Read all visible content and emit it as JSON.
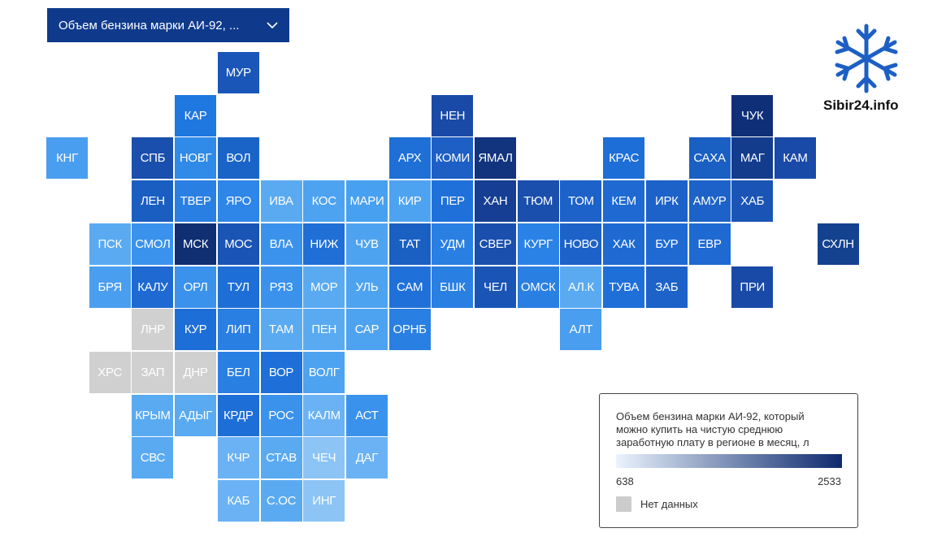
{
  "dropdown": {
    "label": "Объем бензина марки АИ-92, ..."
  },
  "logo": {
    "text": "Sibir24.info"
  },
  "tiles": [
    {
      "label": "МУР",
      "color": "#1a56b8"
    },
    {
      "label": "КАР",
      "color": "#1f77e0"
    },
    {
      "label": "НЕН",
      "color": "#1a4aa8"
    },
    {
      "label": "ЧУК",
      "color": "#0f2f78"
    },
    {
      "label": "КНГ",
      "color": "#4a9ef0"
    },
    {
      "label": "СПБ",
      "color": "#1a4fad"
    },
    {
      "label": "НОВГ",
      "color": "#2f8ae8"
    },
    {
      "label": "ВОЛ",
      "color": "#1a64c8"
    },
    {
      "label": "АРХ",
      "color": "#1e6fd6"
    },
    {
      "label": "КОМИ",
      "color": "#1d5fc4"
    },
    {
      "label": "ЯМАЛ",
      "color": "#12337e"
    },
    {
      "label": "КРАС",
      "color": "#1e6ed8"
    },
    {
      "label": "САХА",
      "color": "#1a5fc2"
    },
    {
      "label": "МАГ",
      "color": "#143c8c"
    },
    {
      "label": "КАМ",
      "color": "#1a4aa8"
    },
    {
      "label": "ЛЕН",
      "color": "#1a5ec2"
    },
    {
      "label": "ТВЕР",
      "color": "#2a7fe2"
    },
    {
      "label": "ЯРО",
      "color": "#2e86e8"
    },
    {
      "label": "ИВА",
      "color": "#5aaaf2"
    },
    {
      "label": "КОС",
      "color": "#4ea3f0"
    },
    {
      "label": "МАРИ",
      "color": "#48a0f0"
    },
    {
      "label": "КИР",
      "color": "#4ea3f0"
    },
    {
      "label": "ПЕР",
      "color": "#1f71d9"
    },
    {
      "label": "ХАН",
      "color": "#163f93"
    },
    {
      "label": "ТЮМ",
      "color": "#1a4fad"
    },
    {
      "label": "ТОМ",
      "color": "#1d62c8"
    },
    {
      "label": "КЕМ",
      "color": "#1e6ad2"
    },
    {
      "label": "ИРК",
      "color": "#1d62c8"
    },
    {
      "label": "АМУР",
      "color": "#1d62c8"
    },
    {
      "label": "ХАБ",
      "color": "#1a55b6"
    },
    {
      "label": "ПСК",
      "color": "#5aaaf2"
    },
    {
      "label": "СМОЛ",
      "color": "#3a92ec"
    },
    {
      "label": "МСК",
      "color": "#102f72"
    },
    {
      "label": "МОС",
      "color": "#1a54b4"
    },
    {
      "label": "ВЛА",
      "color": "#3a92ec"
    },
    {
      "label": "НИЖ",
      "color": "#1f6fd6"
    },
    {
      "label": "ЧУВ",
      "color": "#4ea3f0"
    },
    {
      "label": "ТАТ",
      "color": "#1a5fc2"
    },
    {
      "label": "УДМ",
      "color": "#2a7fe2"
    },
    {
      "label": "СВЕР",
      "color": "#1a4fad"
    },
    {
      "label": "КУРГ",
      "color": "#2a82e6"
    },
    {
      "label": "НОВО",
      "color": "#1d62c8"
    },
    {
      "label": "ХАК",
      "color": "#1e6ad2"
    },
    {
      "label": "БУР",
      "color": "#1e6ad2"
    },
    {
      "label": "ЕВР",
      "color": "#1e6ad2"
    },
    {
      "label": "СХЛН",
      "color": "#14428f"
    },
    {
      "label": "БРЯ",
      "color": "#4a9ef0"
    },
    {
      "label": "КАЛУ",
      "color": "#1e6ad2"
    },
    {
      "label": "ОРЛ",
      "color": "#3a92ec"
    },
    {
      "label": "ТУЛ",
      "color": "#1e6ed8"
    },
    {
      "label": "РЯЗ",
      "color": "#3a92ec"
    },
    {
      "label": "МОР",
      "color": "#5aaaf2"
    },
    {
      "label": "УЛЬ",
      "color": "#4ea3f0"
    },
    {
      "label": "САМ",
      "color": "#1f71d9"
    },
    {
      "label": "БШК",
      "color": "#2a7fe2"
    },
    {
      "label": "ЧЕЛ",
      "color": "#1a55b6"
    },
    {
      "label": "ОМСК",
      "color": "#2a7fe2"
    },
    {
      "label": "АЛ.К",
      "color": "#5aaaf2"
    },
    {
      "label": "ТУВА",
      "color": "#1e70d8"
    },
    {
      "label": "ЗАБ",
      "color": "#1d62c8"
    },
    {
      "label": "ПРИ",
      "color": "#1a4aa8"
    },
    {
      "label": "ЛНР",
      "color": "#d0d0d0"
    },
    {
      "label": "КУР",
      "color": "#1e6ed8"
    },
    {
      "label": "ЛИП",
      "color": "#2a7fe2"
    },
    {
      "label": "ТАМ",
      "color": "#5aaaf2"
    },
    {
      "label": "ПЕН",
      "color": "#5aaaf2"
    },
    {
      "label": "САР",
      "color": "#4ea3f0"
    },
    {
      "label": "ОРНБ",
      "color": "#2a7fe2"
    },
    {
      "label": "АЛТ",
      "color": "#4a9ef0"
    },
    {
      "label": "ХРС",
      "color": "#d0d0d0"
    },
    {
      "label": "ЗАП",
      "color": "#d0d0d0"
    },
    {
      "label": "ДНР",
      "color": "#d0d0d0"
    },
    {
      "label": "БЕЛ",
      "color": "#2a7fe2"
    },
    {
      "label": "ВОР",
      "color": "#1e70d8"
    },
    {
      "label": "ВОЛГ",
      "color": "#4ea3f0"
    },
    {
      "label": "КРЫМ",
      "color": "#5aaaf2"
    },
    {
      "label": "АДЫГ",
      "color": "#5aaaf2"
    },
    {
      "label": "КРДР",
      "color": "#1e6ed8"
    },
    {
      "label": "РОС",
      "color": "#3a92ec"
    },
    {
      "label": "КАЛМ",
      "color": "#6ab2f4"
    },
    {
      "label": "АСТ",
      "color": "#3a92ec"
    },
    {
      "label": "СВС",
      "color": "#5aaaf2"
    },
    {
      "label": "КЧР",
      "color": "#6ab2f4"
    },
    {
      "label": "СТАВ",
      "color": "#5aaaf2"
    },
    {
      "label": "ЧЕЧ",
      "color": "#8cc4f6"
    },
    {
      "label": "ДАГ",
      "color": "#6ab2f4"
    },
    {
      "label": "КАБ",
      "color": "#6ab2f4"
    },
    {
      "label": "С.ОС",
      "color": "#5aaaf2"
    },
    {
      "label": "ИНГ",
      "color": "#8cc4f6"
    }
  ],
  "legend": {
    "title": "Объем бензина марки АИ-92, который можно купить на чистую среднюю заработную плату в регионе в месяц, л",
    "min": 638,
    "max": 2533,
    "gradient": [
      "#eaf3fd",
      "#0d2a6e"
    ],
    "no_data_color": "#cccccc",
    "no_data_label": "Нет данных"
  }
}
